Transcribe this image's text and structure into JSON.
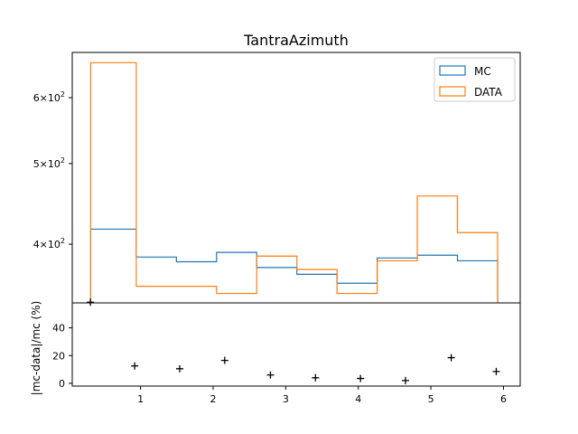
{
  "chart_data": [
    {
      "type": "step",
      "title": "TantraAzimuth",
      "xlabel": "",
      "ylabel": "",
      "yscale": "log",
      "ylim": [
        340,
        680
      ],
      "xlim": [
        0.06,
        6.23
      ],
      "bin_edges": [
        0.314,
        0.942,
        1.495,
        2.048,
        2.601,
        3.154,
        3.707,
        4.26,
        4.813,
        5.366,
        5.919
      ],
      "y_ticks": [
        {
          "value": 400,
          "mantissa": "4",
          "base": "10",
          "exp": "2"
        },
        {
          "value": 500,
          "mantissa": "5",
          "base": "10",
          "exp": "2"
        },
        {
          "value": 600,
          "mantissa": "6",
          "base": "10",
          "exp": "2"
        }
      ],
      "legend_position": "top-right",
      "series": [
        {
          "name": "MC",
          "color": "#1f77b4",
          "values": [
            417,
            386,
            381,
            391,
            375,
            368,
            359,
            385,
            388,
            382
          ]
        },
        {
          "name": "DATA",
          "color": "#ff7f0e",
          "values": [
            661,
            356,
            356,
            349,
            387,
            373,
            349,
            382,
            457,
            413
          ]
        }
      ]
    },
    {
      "type": "scatter",
      "title": "",
      "xlabel": "",
      "ylabel": "|mc-data|/mc (%)",
      "xlim": [
        0.06,
        6.23
      ],
      "ylim": [
        -2,
        58
      ],
      "x_ticks": [
        1,
        2,
        3,
        4,
        5,
        6
      ],
      "y_ticks": [
        0,
        20,
        40
      ],
      "marker": "+",
      "color": "#000000",
      "points": [
        {
          "x": 0.31,
          "y": 58.5
        },
        {
          "x": 0.92,
          "y": 12.5
        },
        {
          "x": 1.54,
          "y": 10.5
        },
        {
          "x": 2.16,
          "y": 16.5
        },
        {
          "x": 2.79,
          "y": 6.0
        },
        {
          "x": 3.41,
          "y": 4.0
        },
        {
          "x": 4.03,
          "y": 3.5
        },
        {
          "x": 4.65,
          "y": 2.0
        },
        {
          "x": 5.28,
          "y": 18.5
        },
        {
          "x": 5.9,
          "y": 8.5
        }
      ]
    }
  ]
}
